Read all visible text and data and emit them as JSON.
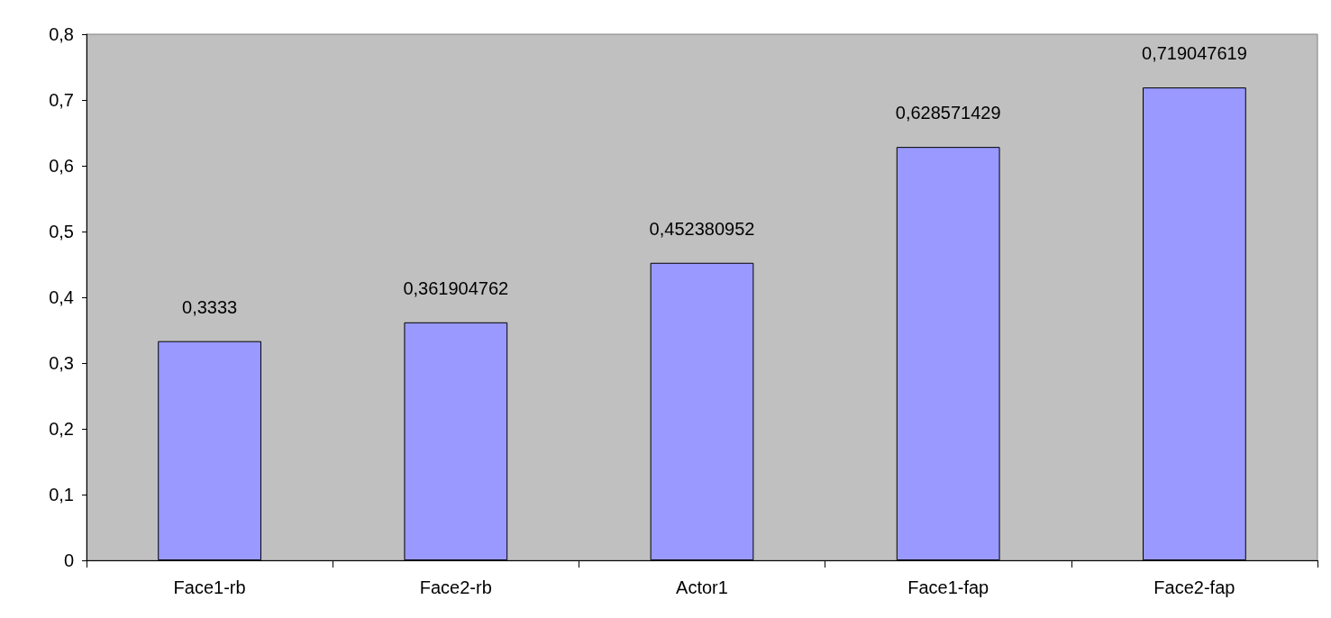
{
  "chart_data": {
    "type": "bar",
    "categories": [
      "Face1-rb",
      "Face2-rb",
      "Actor1",
      "Face1-fap",
      "Face2-fap"
    ],
    "values": [
      0.3333,
      0.361904762,
      0.452380952,
      0.628571429,
      0.719047619
    ],
    "value_labels": [
      "0,3333",
      "0,361904762",
      "0,452380952",
      "0,628571429",
      "0,719047619"
    ],
    "color": "#9999ff",
    "ylim": [
      0,
      0.8
    ],
    "yticks": [
      {
        "value": 0,
        "label": "0"
      },
      {
        "value": 0.1,
        "label": "0,1"
      },
      {
        "value": 0.2,
        "label": "0,2"
      },
      {
        "value": 0.3,
        "label": "0,3"
      },
      {
        "value": 0.4,
        "label": "0,4"
      },
      {
        "value": 0.5,
        "label": "0,5"
      },
      {
        "value": 0.6,
        "label": "0,6"
      },
      {
        "value": 0.7,
        "label": "0,7"
      },
      {
        "value": 0.8,
        "label": "0,8"
      }
    ],
    "grid": false
  }
}
